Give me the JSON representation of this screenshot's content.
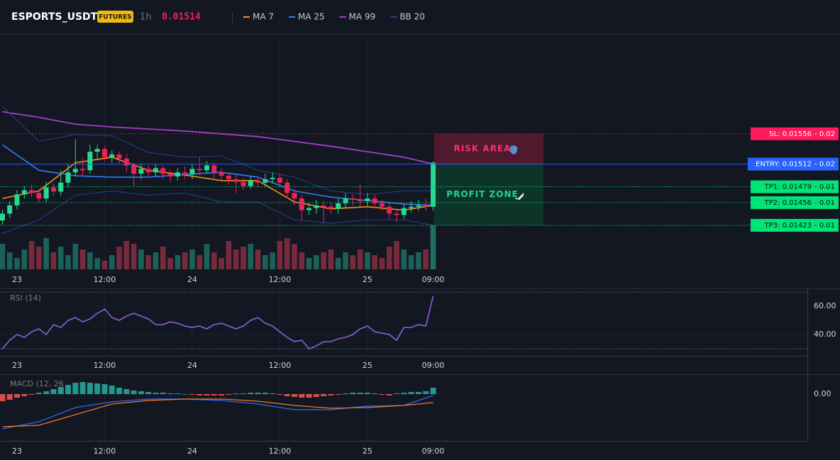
{
  "header": {
    "symbol": "ESPORTS_USDT",
    "badge": "FUTURES",
    "interval": "1h",
    "price": "0.01514"
  },
  "time_labels": [
    {
      "index": 2,
      "label": "23"
    },
    {
      "index": 14,
      "label": "12:00"
    },
    {
      "index": 26,
      "label": "24"
    },
    {
      "index": 38,
      "label": "12:00"
    },
    {
      "index": 50,
      "label": "25"
    },
    {
      "index": 59,
      "label": "09:00"
    }
  ],
  "chart_data": [
    {
      "type": "candlestick",
      "ylim": [
        0.01359,
        0.01699
      ],
      "vlim": [
        0,
        100
      ],
      "up_color": "#26d990",
      "down_color": "#f0205a",
      "candles": [
        [
          0.0143,
          0.01446,
          0.01424,
          0.0144
        ],
        [
          0.0144,
          0.01458,
          0.01434,
          0.01452
        ],
        [
          0.01452,
          0.01474,
          0.01446,
          0.01468
        ],
        [
          0.01468,
          0.0148,
          0.01462,
          0.01474
        ],
        [
          0.01474,
          0.01482,
          0.01464,
          0.0147
        ],
        [
          0.0147,
          0.01476,
          0.01456,
          0.01462
        ],
        [
          0.01462,
          0.01486,
          0.01456,
          0.01478
        ],
        [
          0.01478,
          0.01484,
          0.01466,
          0.01472
        ],
        [
          0.01472,
          0.01503,
          0.01466,
          0.01485
        ],
        [
          0.01485,
          0.01512,
          0.01478,
          0.015
        ],
        [
          0.015,
          0.01548,
          0.01494,
          0.01505
        ],
        [
          0.01505,
          0.0152,
          0.01495,
          0.01503
        ],
        [
          0.01503,
          0.0154,
          0.01498,
          0.0153
        ],
        [
          0.0153,
          0.0154,
          0.0152,
          0.01534
        ],
        [
          0.01534,
          0.01538,
          0.01516,
          0.01522
        ],
        [
          0.01522,
          0.01532,
          0.01514,
          0.01526
        ],
        [
          0.01526,
          0.0153,
          0.01512,
          0.0152
        ],
        [
          0.0152,
          0.01526,
          0.015,
          0.0151
        ],
        [
          0.0151,
          0.01514,
          0.0148,
          0.01498
        ],
        [
          0.01498,
          0.01512,
          0.0149,
          0.01505
        ],
        [
          0.01505,
          0.0151,
          0.01494,
          0.015
        ],
        [
          0.015,
          0.01512,
          0.01494,
          0.01506
        ],
        [
          0.01506,
          0.0151,
          0.0149,
          0.01498
        ],
        [
          0.01498,
          0.01504,
          0.01486,
          0.01494
        ],
        [
          0.01494,
          0.01506,
          0.01488,
          0.015
        ],
        [
          0.015,
          0.01508,
          0.0149,
          0.01497
        ],
        [
          0.01497,
          0.01512,
          0.0149,
          0.01505
        ],
        [
          0.01505,
          0.01522,
          0.01496,
          0.01503
        ],
        [
          0.01503,
          0.01516,
          0.01498,
          0.0151
        ],
        [
          0.0151,
          0.01514,
          0.01492,
          0.015
        ],
        [
          0.015,
          0.01506,
          0.01488,
          0.01495
        ],
        [
          0.01495,
          0.015,
          0.01482,
          0.0149
        ],
        [
          0.0149,
          0.01496,
          0.0147,
          0.01486
        ],
        [
          0.01486,
          0.01492,
          0.01474,
          0.0148
        ],
        [
          0.0148,
          0.01494,
          0.01476,
          0.01488
        ],
        [
          0.01488,
          0.01494,
          0.01478,
          0.01485
        ],
        [
          0.01485,
          0.01498,
          0.0148,
          0.0149
        ],
        [
          0.0149,
          0.015,
          0.01484,
          0.01492
        ],
        [
          0.01492,
          0.01498,
          0.01478,
          0.01485
        ],
        [
          0.01485,
          0.0149,
          0.01462,
          0.0147
        ],
        [
          0.0147,
          0.01476,
          0.01452,
          0.01462
        ],
        [
          0.01462,
          0.01468,
          0.0143,
          0.01445
        ],
        [
          0.01445,
          0.01456,
          0.01438,
          0.01448
        ],
        [
          0.01448,
          0.0146,
          0.0144,
          0.01452
        ],
        [
          0.01452,
          0.01458,
          0.01426,
          0.0145
        ],
        [
          0.0145,
          0.01456,
          0.0144,
          0.01447
        ],
        [
          0.01447,
          0.01462,
          0.0144,
          0.01455
        ],
        [
          0.01455,
          0.0147,
          0.01448,
          0.01462
        ],
        [
          0.01462,
          0.01468,
          0.01452,
          0.0146
        ],
        [
          0.0146,
          0.01482,
          0.0145,
          0.01458
        ],
        [
          0.01458,
          0.0147,
          0.0145,
          0.01462
        ],
        [
          0.01462,
          0.01468,
          0.01448,
          0.01455
        ],
        [
          0.01455,
          0.0146,
          0.01444,
          0.0145
        ],
        [
          0.0145,
          0.01456,
          0.01432,
          0.0144
        ],
        [
          0.0144,
          0.01446,
          0.01428,
          0.01438
        ],
        [
          0.01438,
          0.01454,
          0.01432,
          0.01448
        ],
        [
          0.01448,
          0.01458,
          0.01442,
          0.0145
        ],
        [
          0.0145,
          0.0146,
          0.01444,
          0.01452
        ],
        [
          0.01452,
          0.01462,
          0.01444,
          0.0145
        ],
        [
          0.0145,
          0.01516,
          0.01444,
          0.01514
        ]
      ],
      "volume": [
        45,
        30,
        20,
        35,
        50,
        40,
        55,
        30,
        40,
        25,
        45,
        35,
        30,
        20,
        15,
        25,
        40,
        50,
        45,
        35,
        25,
        30,
        40,
        20,
        25,
        30,
        35,
        25,
        45,
        30,
        20,
        50,
        35,
        40,
        45,
        35,
        25,
        30,
        50,
        55,
        45,
        30,
        20,
        25,
        30,
        35,
        20,
        30,
        25,
        35,
        30,
        25,
        20,
        40,
        50,
        35,
        25,
        30,
        35,
        78
      ],
      "series_index": [
        0,
        5,
        10,
        15,
        20,
        25,
        30,
        35,
        40,
        45,
        50,
        55,
        59
      ],
      "series": [
        {
          "name": "MA 7",
          "color": "#f7931a",
          "values": [
            0.01462,
            0.01473,
            0.01514,
            0.01522,
            0.01503,
            0.01496,
            0.01488,
            0.01488,
            0.01457,
            0.01447,
            0.0145,
            0.01445,
            0.01452
          ]
        },
        {
          "name": "MA 25",
          "color": "#2f7cf6",
          "values": [
            0.0154,
            0.01503,
            0.01495,
            0.01493,
            0.01493,
            0.01497,
            0.015,
            0.01493,
            0.01473,
            0.01464,
            0.01459,
            0.01454,
            0.01452
          ]
        },
        {
          "name": "MA 99",
          "color": "#a33fc4",
          "values": [
            0.01588,
            0.0158,
            0.0157,
            0.01566,
            0.01563,
            0.0156,
            0.01556,
            0.01552,
            0.01545,
            0.01538,
            0.0153,
            0.01522,
            0.01512
          ]
        },
        {
          "name": "BB 20",
          "color": "#2a3f8f",
          "upper": [
            0.01596,
            0.01545,
            0.01555,
            0.01553,
            0.01529,
            0.01522,
            0.01524,
            0.01503,
            0.01493,
            0.01473,
            0.01468,
            0.01473,
            0.01473
          ],
          "lower": [
            0.01411,
            0.01431,
            0.01467,
            0.01473,
            0.01467,
            0.0147,
            0.01457,
            0.01457,
            0.01431,
            0.01426,
            0.01431,
            0.01431,
            0.01423
          ]
        }
      ],
      "levels": [
        {
          "label": "SL: 0.01556",
          "extra": "- 0.02",
          "price": 0.01556,
          "color": "#ff1a5c",
          "text_color": "#ffffff"
        },
        {
          "label": "ENTRY: 0.01512",
          "extra": "- 0.02",
          "price": 0.01512,
          "color": "#2962ff",
          "text_color": "#ffffff"
        },
        {
          "label": "TP1: 0.01479",
          "extra": "- 0.01",
          "price": 0.01479,
          "color": "#00e676",
          "text_color": "#0b0e14"
        },
        {
          "label": "TP2: 0.01456",
          "extra": "- 0.01",
          "price": 0.01456,
          "color": "#00e676",
          "text_color": "#0b0e14"
        },
        {
          "label": "TP3: 0.01423",
          "extra": "- 0.01",
          "price": 0.01423,
          "color": "#00e676",
          "text_color": "#0b0e14"
        }
      ],
      "zones": [
        {
          "label": "RISK AREA",
          "from": 0.01556,
          "to": 0.01512,
          "color": "#5a1a30",
          "text_color": "#ff2f6d"
        },
        {
          "label": "PROFIT ZONE",
          "from": 0.01512,
          "to": 0.01423,
          "color": "#0e3a2a",
          "text_color": "#22d38a"
        }
      ]
    },
    {
      "type": "line",
      "title": "RSI (14)",
      "color": "#8e5fd6",
      "ylim": [
        25,
        72
      ],
      "yticks": [
        {
          "value": 60,
          "label": "60.00"
        },
        {
          "value": 40,
          "label": "40.00"
        }
      ],
      "bands": [
        70,
        30
      ],
      "values": [
        30,
        36,
        40,
        38,
        42,
        44,
        40,
        47,
        45,
        50,
        52,
        49,
        51,
        55,
        58,
        52,
        50,
        53,
        55,
        53,
        51,
        47,
        47,
        49,
        48,
        46,
        45,
        46,
        44,
        47,
        48,
        46,
        44,
        46,
        50,
        52,
        48,
        46,
        42,
        38,
        35,
        36,
        30,
        32,
        35,
        35,
        37,
        38,
        40,
        44,
        46,
        42,
        41,
        40,
        36,
        45,
        45,
        47,
        46,
        67
      ]
    },
    {
      "type": "macd",
      "title": "MACD (12, 26",
      "ylim": [
        -0.00066,
        0.00026
      ],
      "yticks": [
        {
          "value": 0,
          "label": "0.00"
        }
      ],
      "up_color": "#26a69a",
      "down_color": "#ef5350",
      "histogram": [
        -0.0001,
        -8e-05,
        -5e-05,
        -3e-05,
        -1e-05,
        2e-05,
        4e-05,
        7e-05,
        0.0001,
        0.00013,
        0.00016,
        0.00017,
        0.00016,
        0.00015,
        0.00014,
        0.00012,
        9e-05,
        7e-05,
        5e-05,
        4e-05,
        3e-05,
        2e-05,
        2e-05,
        1e-05,
        1e-05,
        0,
        -1e-05,
        -2e-05,
        -2e-05,
        -2e-05,
        -2e-05,
        -1e-05,
        1e-05,
        1e-05,
        2e-05,
        2e-05,
        2e-05,
        1e-05,
        -1e-05,
        -3e-05,
        -4e-05,
        -5e-05,
        -5e-05,
        -4e-05,
        -3e-05,
        -2e-05,
        -1e-05,
        1e-05,
        2e-05,
        2e-05,
        2e-05,
        1e-05,
        -1e-05,
        -2e-05,
        1e-05,
        2e-05,
        3e-05,
        3e-05,
        4e-05,
        9e-05
      ],
      "series_index": [
        0,
        5,
        10,
        15,
        20,
        25,
        30,
        35,
        40,
        45,
        50,
        55,
        59
      ],
      "series": [
        {
          "color": "#2f6cf0",
          "values": [
            -0.00049,
            -0.00039,
            -0.00019,
            -0.00011,
            -7e-05,
            -7e-05,
            -9e-05,
            -0.00014,
            -0.00022,
            -0.00022,
            -0.00017,
            -0.00016,
            -2e-05
          ]
        },
        {
          "color": "#f07a2a",
          "values": [
            -0.00046,
            -0.00044,
            -0.00029,
            -0.00014,
            -9e-05,
            -7e-05,
            -7e-05,
            -0.0001,
            -0.00016,
            -0.0002,
            -0.00019,
            -0.00016,
            -0.00012
          ]
        }
      ]
    }
  ]
}
